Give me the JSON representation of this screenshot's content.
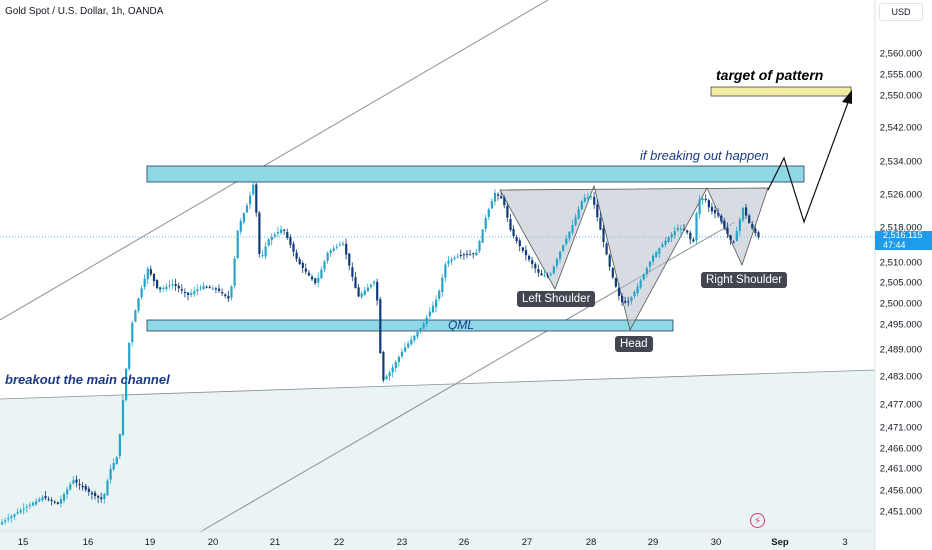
{
  "header": {
    "title": "Gold Spot / U.S. Dollar, 1h, OANDA",
    "currency": "USD"
  },
  "price_tag": {
    "price": "2,516.115",
    "countdown": "47:44"
  },
  "colors": {
    "up": "#26a3c9",
    "down": "#103a78",
    "zone": "#8fd8e6",
    "target_zone": "#f4eba2",
    "pattern_fill": "#b5bfc9",
    "background_band": "#eaf4f4",
    "annotation": "#1b3a86"
  },
  "annotations": {
    "target": "target of pattern",
    "breakout_if": "if breaking out happen",
    "channel": "breakout the main channel",
    "qml": "QML",
    "left_shoulder": "Left Shoulder",
    "head": "Head",
    "right_shoulder": "Right Shoulder"
  },
  "icons": {
    "lightning": "lightning-icon"
  },
  "chart_data": {
    "type": "candlestick",
    "title": "Gold Spot / U.S. Dollar, 1h, OANDA",
    "y_axis": {
      "range": [
        2447,
        2566
      ],
      "ticks": [
        "2,451.000",
        "2,456.000",
        "2,461.000",
        "2,466.000",
        "2,471.000",
        "2,477.000",
        "2,483.000",
        "2,489.000",
        "2,495.000",
        "2,500.000",
        "2,505.000",
        "2,510.000",
        "2,518.000",
        "2,526.000",
        "2,534.000",
        "2,542.000",
        "2,550.000",
        "2,555.000",
        "2,560.000"
      ]
    },
    "x_axis": {
      "ticks": [
        "15",
        "16",
        "19",
        "20",
        "21",
        "22",
        "23",
        "26",
        "27",
        "28",
        "29",
        "30",
        "Sep",
        "3"
      ]
    },
    "last_price": 2516.115,
    "zones": [
      {
        "name": "resistance",
        "y_low": 2529.5,
        "y_high": 2532.5
      },
      {
        "name": "qml",
        "y_low": 2494.5,
        "y_high": 2496.5
      },
      {
        "name": "target",
        "y_low": 2550,
        "y_high": 2552.5
      }
    ],
    "pattern": "head and shoulders",
    "pivots": [
      {
        "label": "Left Shoulder",
        "x": "27",
        "y": 2506
      },
      {
        "label": "Head",
        "x": "28",
        "y": 2495
      },
      {
        "label": "Right Shoulder",
        "x": "30",
        "y": 2513
      }
    ],
    "projection": [
      2528.5,
      2536,
      2519,
      2550.5
    ]
  }
}
